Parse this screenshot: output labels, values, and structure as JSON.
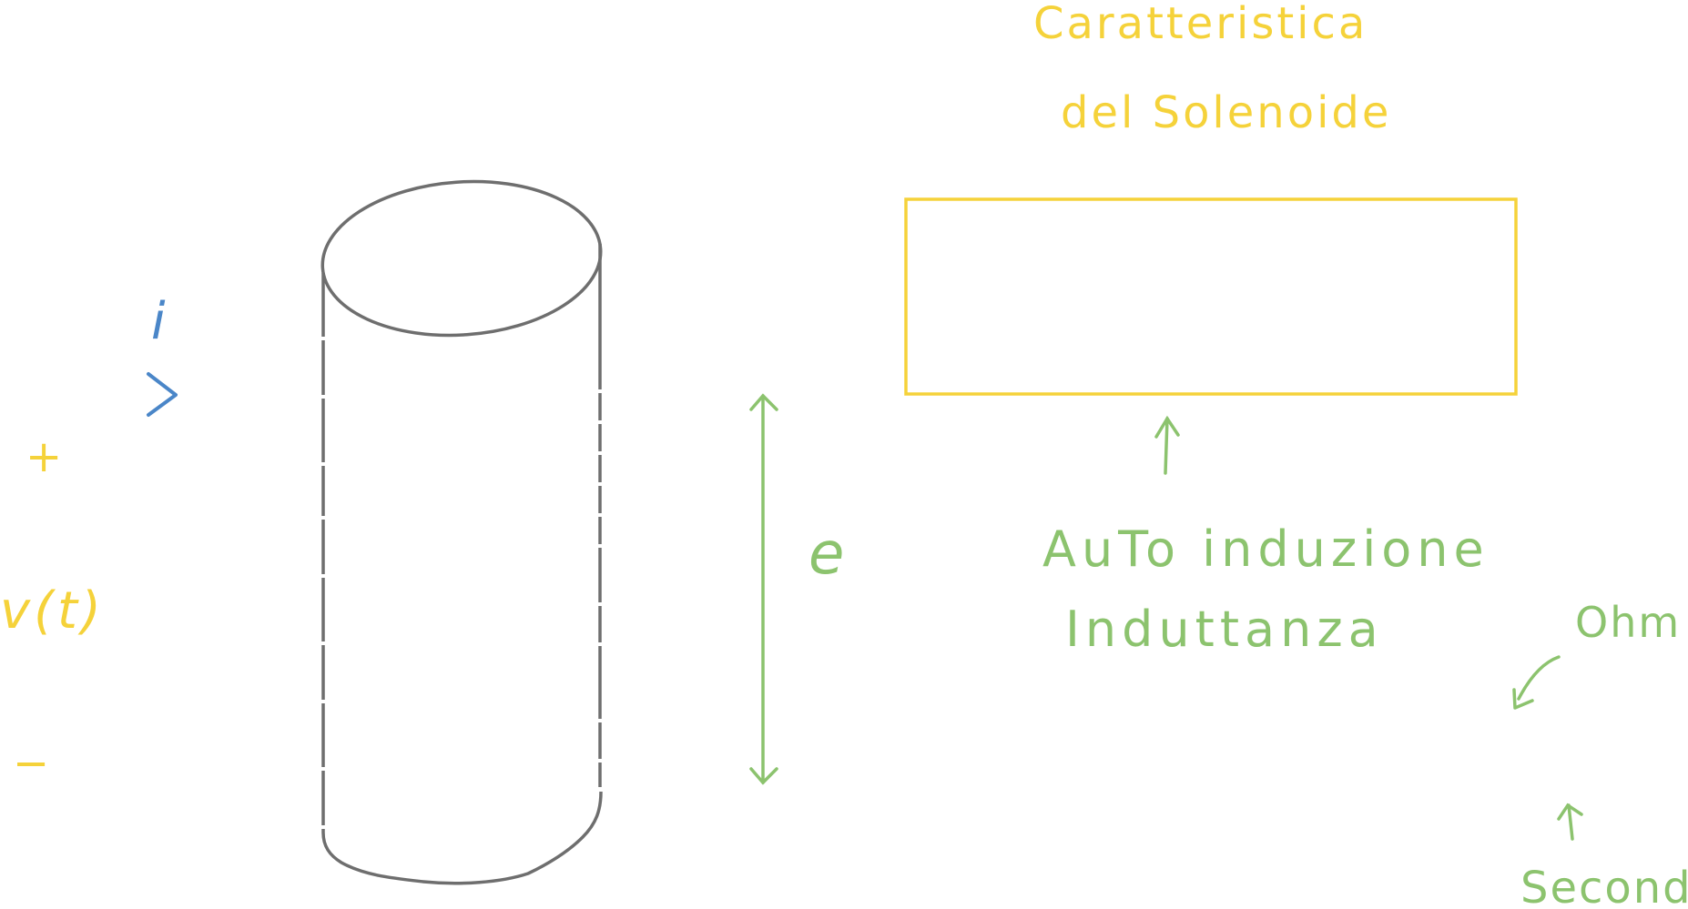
{
  "title": {
    "line1": "Caratteristica",
    "line2": "del Solenoide"
  },
  "labels": {
    "current": "i",
    "plus": "+",
    "voltage": "v(t)",
    "minus": "−",
    "emf": "e",
    "self_induction": "AuTo induzione",
    "inductance": "Induttanza",
    "ohm": "Ohm",
    "seconds": "Secondi"
  },
  "colors": {
    "yellow": "#F5D23A",
    "green": "#8CC36E",
    "blue": "#4A86C8",
    "gray": "#6E6E6E"
  }
}
